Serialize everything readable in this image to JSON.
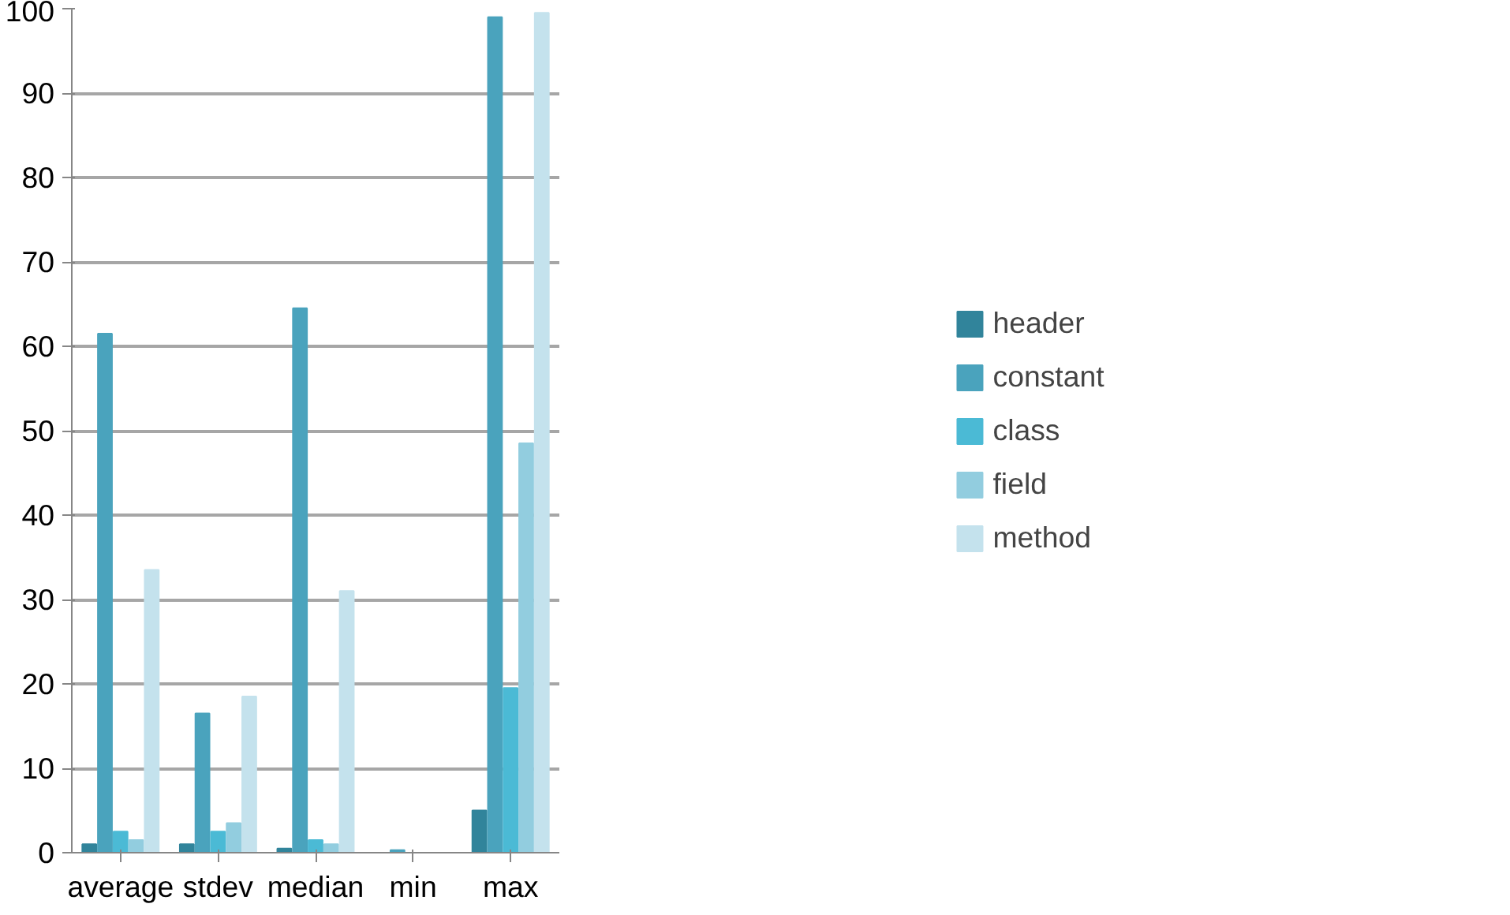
{
  "chart_data": {
    "type": "bar",
    "categories": [
      "average",
      "stdev",
      "median",
      "min",
      "max"
    ],
    "series": [
      {
        "name": "header",
        "color": "#31849b",
        "values": [
          1,
          1,
          0.5,
          0,
          5
        ]
      },
      {
        "name": "constant",
        "color": "#4aa3bd",
        "values": [
          61.5,
          16.5,
          64.5,
          0.3,
          99
        ]
      },
      {
        "name": "class",
        "color": "#4bbad5",
        "values": [
          2.5,
          2.5,
          1.5,
          0,
          19.5
        ]
      },
      {
        "name": "field",
        "color": "#92cddf",
        "values": [
          1.5,
          3.5,
          1,
          0,
          48.5
        ]
      },
      {
        "name": "method",
        "color": "#c4e2ed",
        "values": [
          33.5,
          18.5,
          31,
          0,
          99.5
        ]
      }
    ],
    "ylim": [
      0,
      100
    ],
    "yticks": [
      0,
      10,
      20,
      30,
      40,
      50,
      60,
      70,
      80,
      90,
      100
    ],
    "grid": "y",
    "legend": "right"
  }
}
